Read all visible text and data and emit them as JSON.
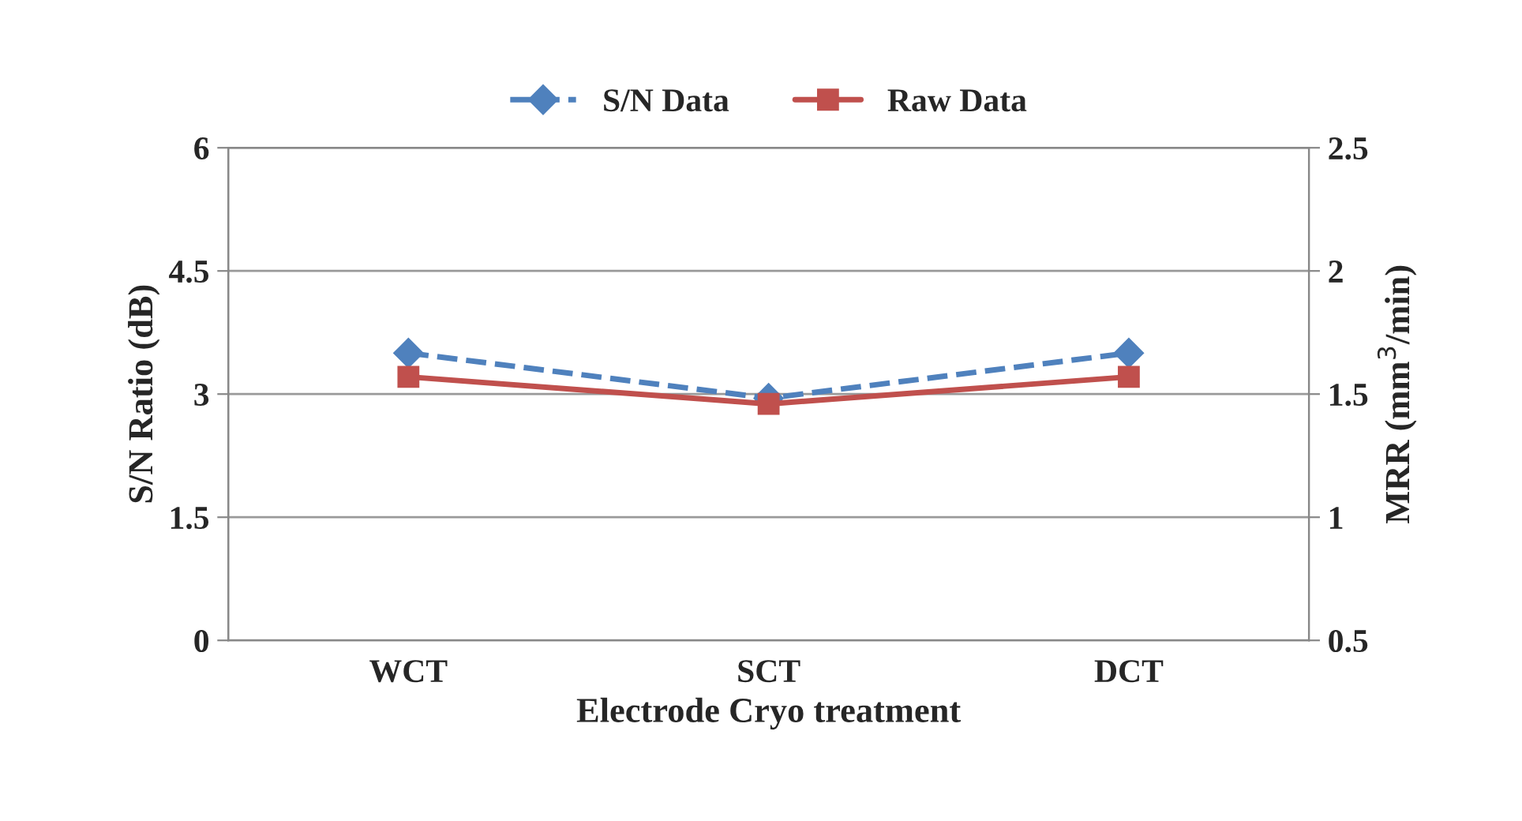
{
  "chart_data": {
    "type": "line",
    "xlabel": "Electrode Cryo treatment",
    "ylabel": "S/N Ratio (dB)",
    "y2label": "MRR (mm$^{3}$/min)",
    "categories": [
      "WCT",
      "SCT",
      "DCT"
    ],
    "series": [
      {
        "name": "S/N Data",
        "color": "#4f81bd",
        "values": [
          3.5,
          2.95,
          3.5
        ],
        "marker": "diamond",
        "line_style": "dashed"
      },
      {
        "name": "Raw Data",
        "color": "#c0504d",
        "values": [
          1.57,
          1.46,
          1.57
        ],
        "marker": "square",
        "line_style": "solid",
        "axis": "y2"
      }
    ],
    "ylim": [
      0,
      6
    ],
    "yticks": [
      0,
      1.5,
      3,
      4.5,
      6
    ],
    "y2lim": [
      0.5,
      2.5
    ],
    "y2ticks": [
      0.5,
      1,
      1.5,
      2,
      2.5
    ],
    "grid": "y",
    "legend": "top"
  }
}
